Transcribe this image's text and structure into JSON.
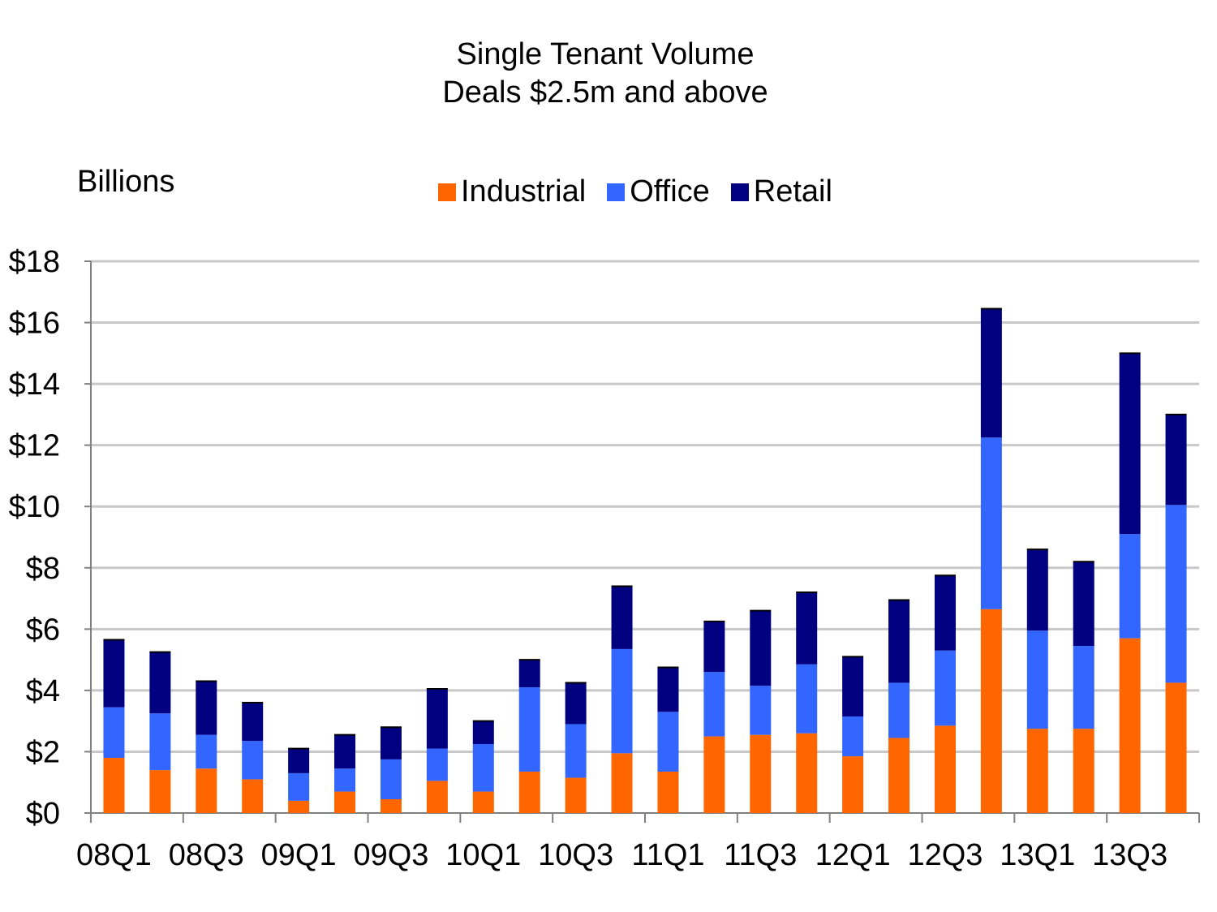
{
  "chart_data": {
    "type": "bar",
    "stacked": true,
    "title": "Single Tenant Volume",
    "subtitle": "Deals $2.5m and above",
    "ylabel": "Billions",
    "xlabel": "",
    "ylim": [
      0,
      18
    ],
    "y_ticks": [
      "$0",
      "$2",
      "$4",
      "$6",
      "$8",
      "$10",
      "$12",
      "$14",
      "$16",
      "$18"
    ],
    "grid": true,
    "legend_position": "top",
    "categories": [
      "08Q1",
      "08Q2",
      "08Q3",
      "08Q4",
      "09Q1",
      "09Q2",
      "09Q3",
      "09Q4",
      "10Q1",
      "10Q2",
      "10Q3",
      "10Q4",
      "11Q1",
      "11Q2",
      "11Q3",
      "11Q4",
      "12Q1",
      "12Q2",
      "12Q3",
      "12Q4",
      "13Q1",
      "13Q2",
      "13Q3",
      "13Q4"
    ],
    "x_tick_labels": [
      "08Q1",
      "08Q3",
      "09Q1",
      "09Q3",
      "10Q1",
      "10Q3",
      "11Q1",
      "11Q3",
      "12Q1",
      "12Q3",
      "13Q1",
      "13Q3"
    ],
    "series": [
      {
        "name": "Industrial",
        "color": "#ff6600",
        "values": [
          1.8,
          1.4,
          1.45,
          1.1,
          0.4,
          0.7,
          0.45,
          1.05,
          0.7,
          1.35,
          1.15,
          1.95,
          1.35,
          2.5,
          2.55,
          2.6,
          1.85,
          2.45,
          2.85,
          6.65,
          2.75,
          2.75,
          5.7,
          4.25
        ]
      },
      {
        "name": "Office",
        "color": "#3366ff",
        "values": [
          1.65,
          1.85,
          1.1,
          1.25,
          0.9,
          0.75,
          1.3,
          1.05,
          1.55,
          2.75,
          1.75,
          3.4,
          1.95,
          2.1,
          1.6,
          2.25,
          1.3,
          1.8,
          2.45,
          5.6,
          3.2,
          2.7,
          3.4,
          5.8
        ]
      },
      {
        "name": "Retail",
        "color": "#000080",
        "values": [
          2.2,
          2.0,
          1.75,
          1.25,
          0.8,
          1.1,
          1.05,
          1.95,
          0.75,
          0.9,
          1.35,
          2.05,
          1.45,
          1.65,
          2.45,
          2.35,
          1.95,
          2.7,
          2.45,
          4.2,
          2.65,
          2.75,
          5.9,
          2.95
        ]
      }
    ]
  }
}
